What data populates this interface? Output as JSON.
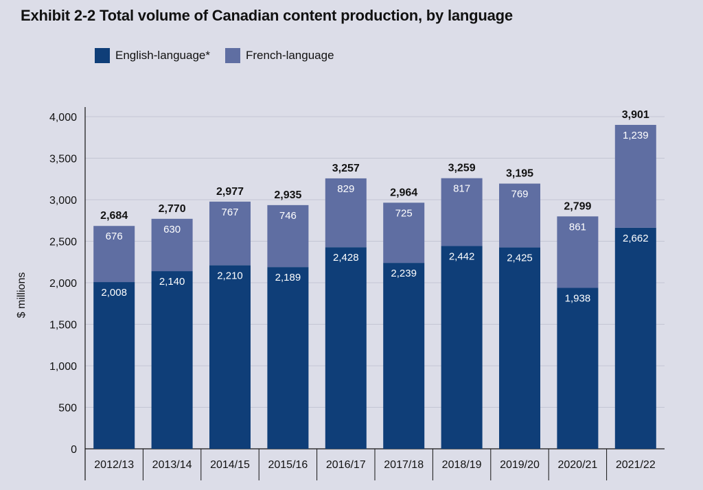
{
  "title": "Exhibit 2-2  Total volume of Canadian content production, by language",
  "legend": [
    {
      "label": "English-language*",
      "color": "#0f3e78"
    },
    {
      "label": "French-language",
      "color": "#5f6ea2"
    }
  ],
  "chart_data": {
    "type": "bar",
    "stacked": true,
    "title": "Exhibit 2-2  Total volume of Canadian content production, by language",
    "xlabel": "",
    "ylabel": "$ millions",
    "ylim": [
      0,
      4000
    ],
    "yticks": [
      0,
      500,
      1000,
      1500,
      2000,
      2500,
      3000,
      3500,
      4000
    ],
    "ytick_labels": [
      "0",
      "500",
      "1,000",
      "1,500",
      "2,000",
      "2,500",
      "3,000",
      "3,500",
      "4,000"
    ],
    "grid": true,
    "legend_position": "top-left",
    "categories": [
      "2012/13",
      "2013/14",
      "2014/15",
      "2015/16",
      "2016/17",
      "2017/18",
      "2018/19",
      "2019/20",
      "2020/21",
      "2021/22"
    ],
    "series": [
      {
        "name": "English-language*",
        "color": "#0f3e78",
        "values": [
          2008,
          2140,
          2210,
          2189,
          2428,
          2239,
          2442,
          2425,
          1938,
          2662
        ],
        "labels": [
          "2,008",
          "2,140",
          "2,210",
          "2,189",
          "2,428",
          "2,239",
          "2,442",
          "2,425",
          "1,938",
          "2,662"
        ]
      },
      {
        "name": "French-language",
        "color": "#5f6ea2",
        "values": [
          676,
          630,
          767,
          746,
          829,
          725,
          817,
          769,
          861,
          1239
        ],
        "labels": [
          "676",
          "630",
          "767",
          "746",
          "829",
          "725",
          "817",
          "769",
          "861",
          "1,239"
        ]
      }
    ],
    "totals": [
      2684,
      2770,
      2977,
      2935,
      3257,
      2964,
      3259,
      3195,
      2799,
      3901
    ],
    "total_labels": [
      "2,684",
      "2,770",
      "2,977",
      "2,935",
      "3,257",
      "2,964",
      "3,259",
      "3,195",
      "2,799",
      "3,901"
    ]
  }
}
